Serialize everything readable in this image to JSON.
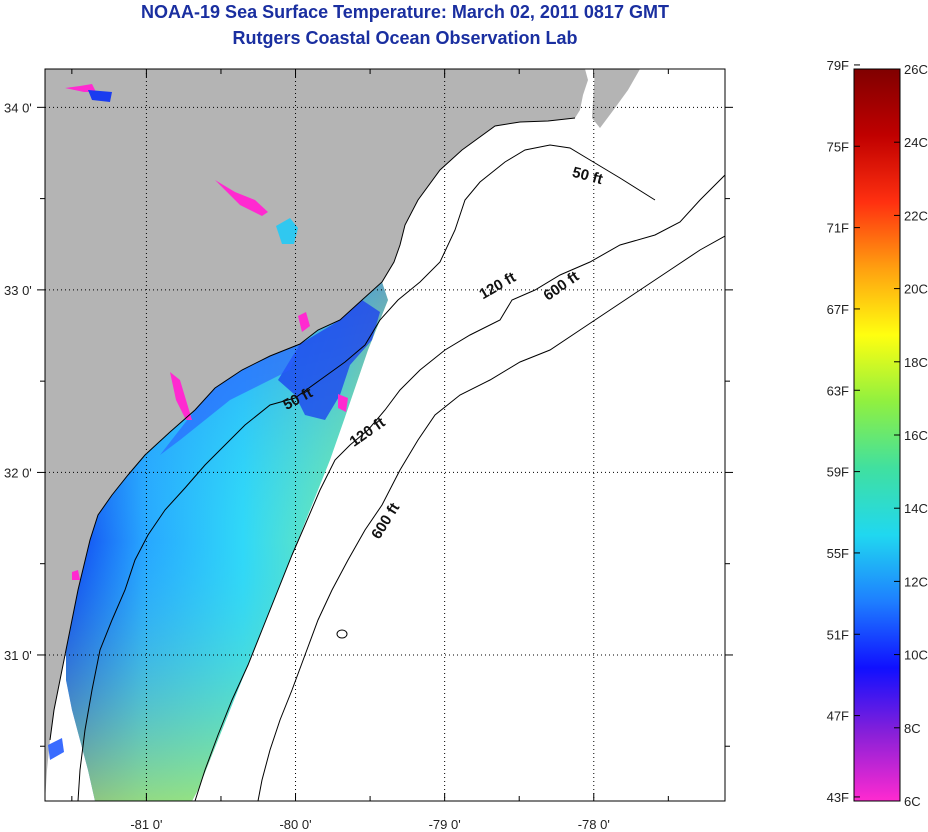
{
  "title": {
    "line1": "NOAA-19 Sea Surface Temperature:  March 02, 2011 0817 GMT",
    "line2": "Rutgers Coastal Ocean Observation Lab"
  },
  "colors": {
    "title": "#1a2fa0",
    "land": "#b4b4b4",
    "ocean_nodata": "#ffffff",
    "contour": "#000000"
  },
  "map": {
    "lon_ticks": [
      "-81 0'",
      "-80 0'",
      "-79 0'",
      "-78 0'"
    ],
    "lat_ticks": [
      "34 0'",
      "33 0'",
      "32 0'",
      "31 0'"
    ],
    "lon_values": [
      -81,
      -80,
      -79,
      -78
    ],
    "lat_values": [
      34,
      33,
      32,
      31
    ],
    "lon_range": [
      -81.68,
      -77.12
    ],
    "lat_range": [
      30.2,
      34.21
    ],
    "grid": "dotted",
    "isobaths": [
      {
        "label": "50 ft",
        "depth_ft": 50
      },
      {
        "label": "120 ft",
        "depth_ft": 120
      },
      {
        "label": "600 ft",
        "depth_ft": 600
      }
    ],
    "isobath_labels": [
      {
        "text": "50 ft",
        "lon": -78.05,
        "lat": 33.6
      },
      {
        "text": "120 ft",
        "lon": -78.63,
        "lat": 33.0
      },
      {
        "text": "600 ft",
        "lon": -78.2,
        "lat": 33.0
      },
      {
        "text": "50 ft",
        "lon": -79.97,
        "lat": 32.38
      },
      {
        "text": "120 ft",
        "lon": -79.5,
        "lat": 32.2
      },
      {
        "text": "600 ft",
        "lon": -79.37,
        "lat": 31.72
      }
    ]
  },
  "colorbar": {
    "fahrenheit_labels": [
      "79F",
      "75F",
      "71F",
      "67F",
      "63F",
      "59F",
      "55F",
      "51F",
      "47F",
      "43F"
    ],
    "celsius_labels": [
      "26C",
      "24C",
      "22C",
      "20C",
      "18C",
      "16C",
      "14C",
      "12C",
      "10C",
      "8C",
      "6C"
    ],
    "range_c": [
      6,
      26
    ],
    "gradient_stops": [
      "#ff2ad0",
      "#8a20d8",
      "#1010ff",
      "#1e7fff",
      "#20d8f0",
      "#40e0a0",
      "#90f040",
      "#ffff10",
      "#ffa010",
      "#ff3010",
      "#c00000",
      "#800000"
    ]
  }
}
